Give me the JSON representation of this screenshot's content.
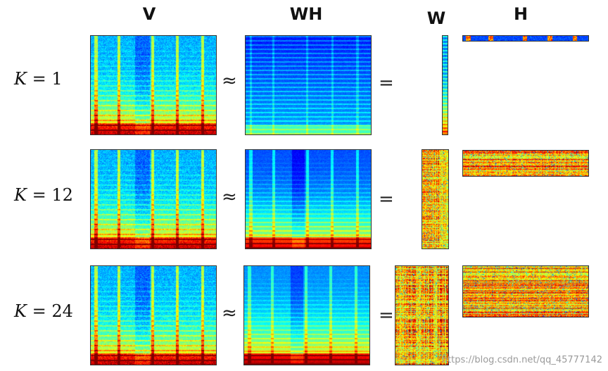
{
  "headers": {
    "v": "V",
    "wh": "WH",
    "w": "W",
    "h": "H"
  },
  "symbols": {
    "approx": "≈",
    "equals": "="
  },
  "rows": [
    {
      "k_symbol": "K",
      "eq": " = ",
      "k_value": "1"
    },
    {
      "k_symbol": "K",
      "eq": " = ",
      "k_value": "12"
    },
    {
      "k_symbol": "K",
      "eq": " = ",
      "k_value": "24"
    }
  ],
  "watermark": "https://blog.csdn.net/qq_45777142",
  "colormap": "jet"
}
